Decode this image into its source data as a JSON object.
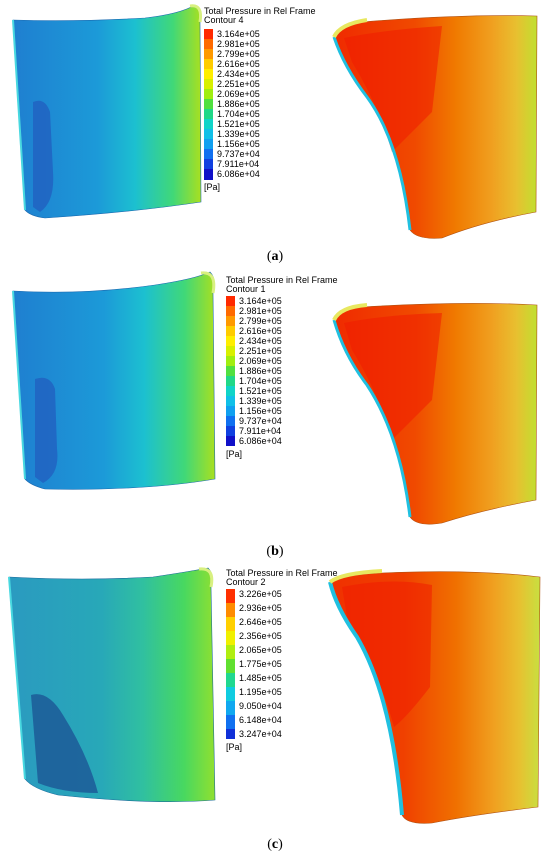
{
  "panels": [
    {
      "caption_letter": "a",
      "legend": {
        "title_line1": "Total Pressure in Rel Frame",
        "title_line2": "Contour 4",
        "unit": "[Pa]",
        "levels": [
          "3.164e+05",
          "2.981e+05",
          "2.799e+05",
          "2.616e+05",
          "2.434e+05",
          "2.251e+05",
          "2.069e+05",
          "1.886e+05",
          "1.704e+05",
          "1.521e+05",
          "1.339e+05",
          "1.156e+05",
          "9.737e+04",
          "7.911e+04",
          "6.086e+04"
        ],
        "colors": [
          "#ff2a00",
          "#ff6a00",
          "#ff9a00",
          "#ffcc00",
          "#ffee00",
          "#d8f000",
          "#a0ee10",
          "#50e040",
          "#20d888",
          "#10d4c8",
          "#10c0e8",
          "#10a0f0",
          "#1070f0",
          "#1040e0",
          "#1010c8"
        ]
      }
    },
    {
      "caption_letter": "b",
      "legend": {
        "title_line1": "Total Pressure in Rel Frame",
        "title_line2": "Contour 1",
        "unit": "[Pa]",
        "levels": [
          "3.164e+05",
          "2.981e+05",
          "2.799e+05",
          "2.616e+05",
          "2.434e+05",
          "2.251e+05",
          "2.069e+05",
          "1.886e+05",
          "1.704e+05",
          "1.521e+05",
          "1.339e+05",
          "1.156e+05",
          "9.737e+04",
          "7.911e+04",
          "6.086e+04"
        ],
        "colors": [
          "#ff2a00",
          "#ff6a00",
          "#ff9a00",
          "#ffcc00",
          "#ffee00",
          "#d8f000",
          "#a0ee10",
          "#50e040",
          "#20d888",
          "#10d4c8",
          "#10c0e8",
          "#10a0f0",
          "#1070f0",
          "#1040e0",
          "#1010c8"
        ]
      }
    },
    {
      "caption_letter": "c",
      "legend": {
        "title_line1": "Total Pressure in Rel Frame",
        "title_line2": "Contour 2",
        "unit": "[Pa]",
        "levels": [
          "3.226e+05",
          "2.936e+05",
          "2.646e+05",
          "2.356e+05",
          "2.065e+05",
          "1.775e+05",
          "1.485e+05",
          "1.195e+05",
          "9.050e+04",
          "6.148e+04",
          "3.247e+04"
        ],
        "colors": [
          "#ff3000",
          "#ff8c00",
          "#ffd000",
          "#f0f000",
          "#b0ee10",
          "#60e030",
          "#20d890",
          "#10cce0",
          "#10a8f0",
          "#1070f0",
          "#1030d8"
        ]
      }
    }
  ]
}
